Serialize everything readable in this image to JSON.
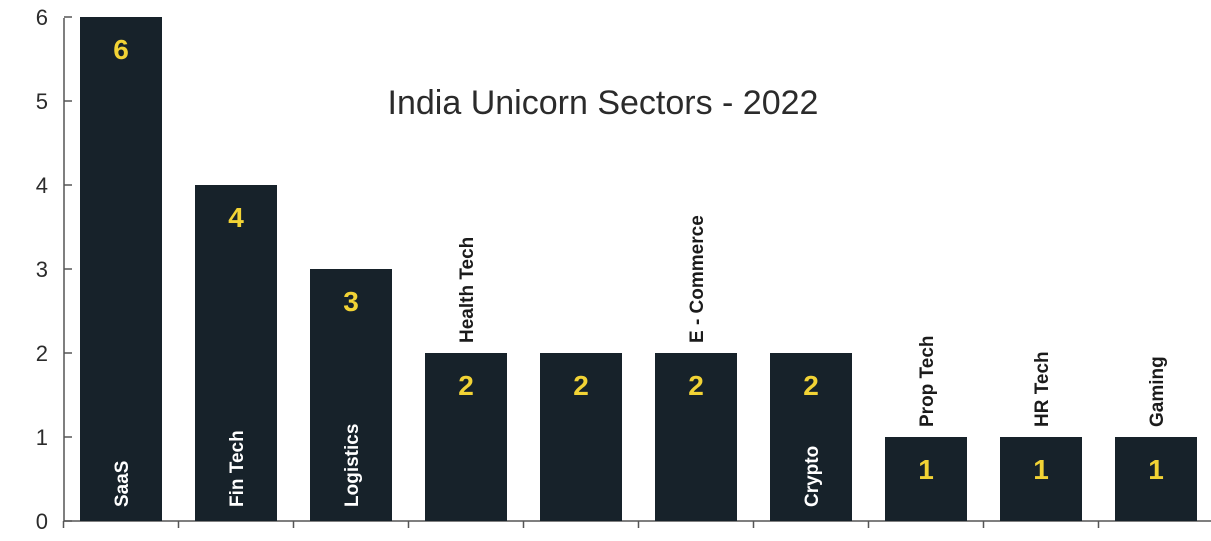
{
  "chart_data": {
    "type": "bar",
    "title": "India Unicorn Sectors - 2022",
    "xlabel": "",
    "ylabel": "",
    "ylim": [
      0,
      6
    ],
    "yticks": [
      0,
      1,
      2,
      3,
      4,
      5,
      6
    ],
    "grid": false,
    "legend": "none",
    "categories": [
      "SaaS",
      "Fin Tech",
      "Logistics",
      "Health Tech",
      "",
      "E - Commerce",
      "Crypto",
      "Prop Tech",
      "HR Tech",
      "Gaming"
    ],
    "values": [
      6,
      4,
      3,
      2,
      2,
      2,
      2,
      1,
      1,
      1
    ],
    "data_labels": [
      "6",
      "4",
      "3",
      "2",
      "2",
      "2",
      "2",
      "1",
      "1",
      "1"
    ],
    "label_placement": [
      "inside",
      "inside",
      "inside",
      "above",
      "none",
      "above",
      "inside",
      "above",
      "above",
      "above"
    ],
    "colors": {
      "bar": "#17222a",
      "value_label": "#f2d335",
      "axis": "#555555"
    }
  }
}
